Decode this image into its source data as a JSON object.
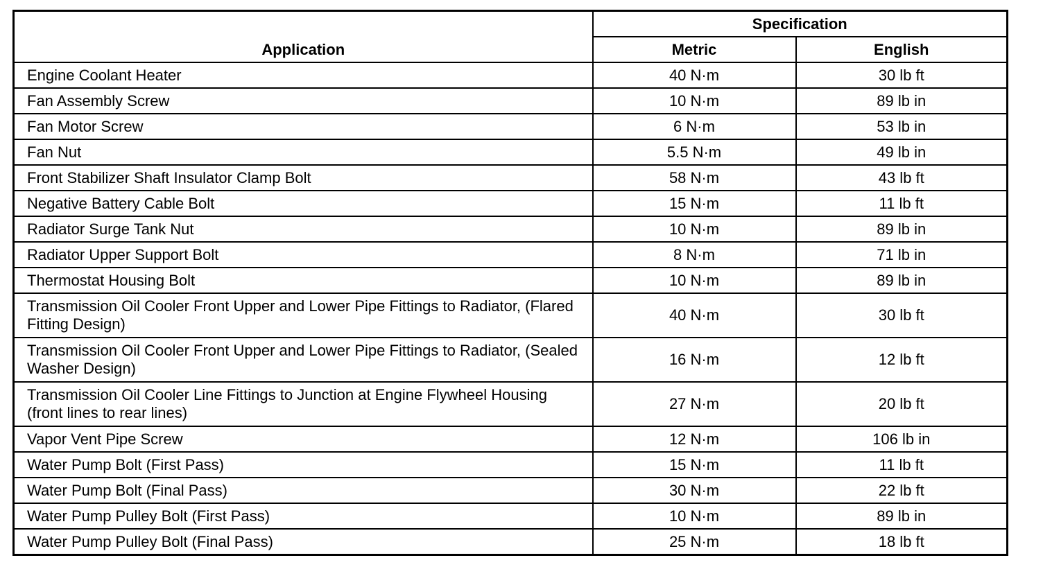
{
  "header": {
    "application": "Application",
    "specification": "Specification",
    "metric": "Metric",
    "english": "English"
  },
  "rows": [
    {
      "application": "Engine Coolant Heater",
      "metric": "40 N·m",
      "english": "30 lb ft"
    },
    {
      "application": "Fan Assembly Screw",
      "metric": "10 N·m",
      "english": "89 lb in"
    },
    {
      "application": "Fan Motor Screw",
      "metric": "6 N·m",
      "english": "53 lb in"
    },
    {
      "application": "Fan Nut",
      "metric": "5.5 N·m",
      "english": "49 lb in"
    },
    {
      "application": "Front Stabilizer Shaft Insulator Clamp Bolt",
      "metric": "58 N·m",
      "english": "43 lb ft"
    },
    {
      "application": "Negative Battery Cable Bolt",
      "metric": "15 N·m",
      "english": "11 lb ft"
    },
    {
      "application": "Radiator Surge Tank Nut",
      "metric": "10 N·m",
      "english": "89 lb in"
    },
    {
      "application": "Radiator Upper Support Bolt",
      "metric": "8 N·m",
      "english": "71 lb in"
    },
    {
      "application": "Thermostat Housing Bolt",
      "metric": "10 N·m",
      "english": "89 lb in"
    },
    {
      "application": "Transmission Oil Cooler Front Upper and Lower Pipe Fittings to Radiator, (Flared Fitting Design)",
      "metric": "40 N·m",
      "english": "30 lb ft",
      "tall": true
    },
    {
      "application": "Transmission Oil Cooler Front Upper and Lower Pipe Fittings to Radiator, (Sealed Washer Design)",
      "metric": "16 N·m",
      "english": "12 lb ft",
      "tall": true
    },
    {
      "application": "Transmission Oil Cooler Line Fittings to Junction at Engine Flywheel Housing (front lines to rear lines)",
      "metric": "27 N·m",
      "english": "20 lb ft",
      "tall": true
    },
    {
      "application": "Vapor Vent Pipe Screw",
      "metric": "12 N·m",
      "english": "106 lb in"
    },
    {
      "application": "Water Pump Bolt (First Pass)",
      "metric": "15 N·m",
      "english": "11 lb ft"
    },
    {
      "application": "Water Pump Bolt (Final Pass)",
      "metric": "30 N·m",
      "english": "22 lb ft"
    },
    {
      "application": "Water Pump Pulley Bolt (First Pass)",
      "metric": "10 N·m",
      "english": "89 lb in"
    },
    {
      "application": "Water Pump Pulley Bolt (Final Pass)",
      "metric": "25 N·m",
      "english": "18 lb ft"
    }
  ]
}
